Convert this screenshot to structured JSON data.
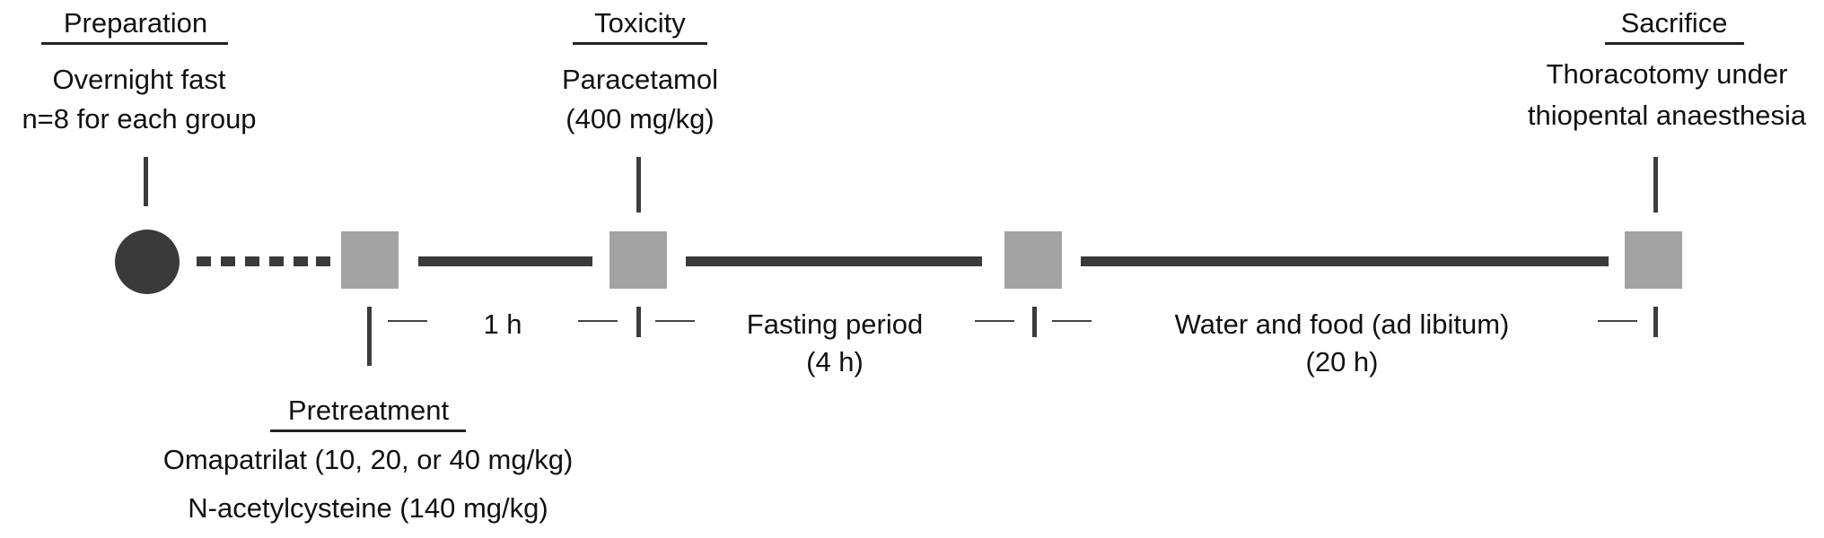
{
  "preparation": {
    "heading": "Preparation",
    "line1": "Overnight fast",
    "line2": "n=8 for each group"
  },
  "toxicity": {
    "heading": "Toxicity",
    "line1": "Paracetamol",
    "line2": "(400 mg/kg)"
  },
  "sacrifice": {
    "heading": "Sacrifice",
    "line1": "Thoracotomy under",
    "line2": "thiopental anaesthesia"
  },
  "pretreatment": {
    "heading": "Pretreatment",
    "line1": "Omapatrilat (10, 20, or 40 mg/kg)",
    "line2": "N-acetylcysteine (140 mg/kg)"
  },
  "intervals": {
    "first": "1 h",
    "fasting_label": "Fasting period",
    "fasting_duration": "(4 h)",
    "feeding_label": "Water and food (ad libitum)",
    "feeding_duration": "(20 h)"
  },
  "colors": {
    "line": "#3a3a3a",
    "square": "#a3a3a3",
    "start_dot": "#3a3a3a"
  }
}
